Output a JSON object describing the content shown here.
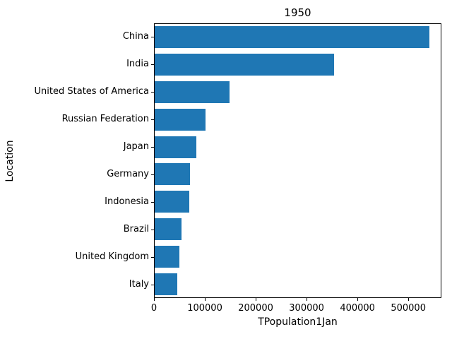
{
  "figure": {
    "background": "#ffffff"
  },
  "chart_data": {
    "type": "bar",
    "orientation": "horizontal",
    "title": "1950",
    "xlabel": "TPopulation1Jan",
    "ylabel": "Location",
    "categories": [
      "China",
      "India",
      "United States of America",
      "Russian Federation",
      "Japan",
      "Germany",
      "Indonesia",
      "Brazil",
      "United Kingdom",
      "Italy"
    ],
    "values": [
      540000,
      352000,
      147000,
      100500,
      82300,
      69400,
      68300,
      52100,
      49000,
      44100
    ],
    "xlim": [
      0,
      565000
    ],
    "xticks": [
      0,
      100000,
      200000,
      300000,
      400000,
      500000
    ],
    "xtick_labels": [
      "0",
      "100000",
      "200000",
      "300000",
      "400000",
      "500000"
    ],
    "bar_color": "#1f77b4",
    "grid": false,
    "legend": null,
    "spine_color": "#000000",
    "text_color": "#000000"
  }
}
